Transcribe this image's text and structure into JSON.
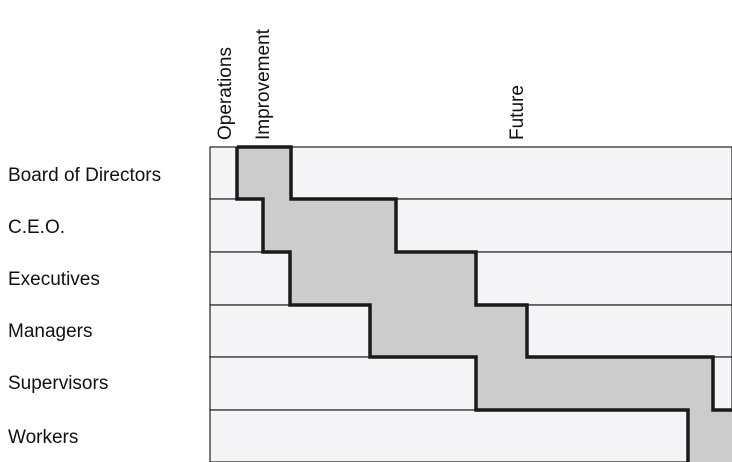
{
  "columns": [
    {
      "label": "Operations"
    },
    {
      "label": "Improvement"
    },
    {
      "label": "Future"
    }
  ],
  "rows": [
    {
      "label": "Board of Directors"
    },
    {
      "label": "C.E.O."
    },
    {
      "label": "Executives"
    },
    {
      "label": "Managers"
    },
    {
      "label": "Supervisors"
    },
    {
      "label": "Workers"
    }
  ],
  "colors": {
    "row_band": "#f4f4f7",
    "block_fill": "#cccccc",
    "outline": "#1a1a1a",
    "grid": "#222222"
  }
}
